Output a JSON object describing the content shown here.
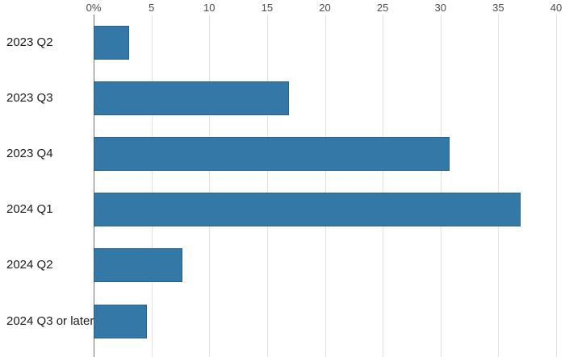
{
  "chart_data": {
    "type": "bar",
    "orientation": "horizontal",
    "title": "",
    "xlabel": "",
    "ylabel": "",
    "categories": [
      "2023 Q2",
      "2023 Q3",
      "2023 Q4",
      "2024 Q1",
      "2024 Q2",
      "2024 Q3 or later"
    ],
    "values": [
      3.1,
      16.9,
      30.8,
      36.9,
      7.7,
      4.6
    ],
    "unit": "percent",
    "xlim": [
      0,
      40
    ],
    "x_ticks": [
      0,
      5,
      10,
      15,
      20,
      25,
      30,
      35,
      40
    ],
    "x_tick_labels": [
      "0%",
      "5",
      "10",
      "15",
      "20",
      "25",
      "30",
      "35",
      "40"
    ],
    "grid": true,
    "legend": false,
    "colors": {
      "bar_fill": "#3478a8",
      "bar_border": "#29618c",
      "gridline": "#e2e2e2",
      "axis_spine": "#757575",
      "tick_label": "#4a4a4a",
      "category_label": "#1a1a1a",
      "background": "#ffffff"
    }
  }
}
